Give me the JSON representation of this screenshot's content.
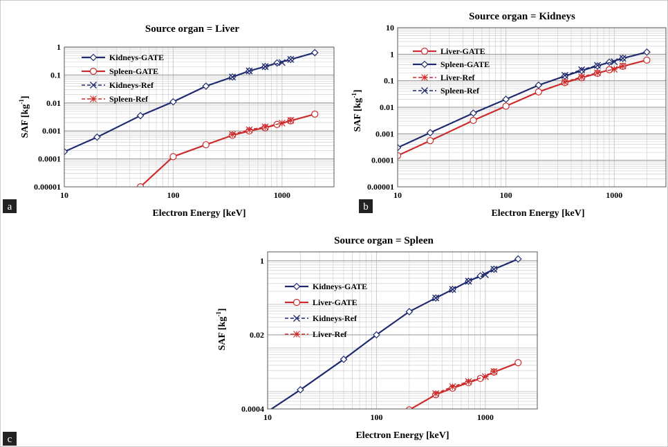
{
  "colors": {
    "navy": "#1f2a6e",
    "red": "#cc2b2b",
    "grid": "#c9c9c9",
    "panel_label_bg": "#222222"
  },
  "chart_data": [
    {
      "panel": "a",
      "type": "line",
      "title": "Source organ = Liver",
      "xlabel": "Electron Energy [keV]",
      "ylabel": "SAF [kg-1]",
      "xscale": "log",
      "yscale": "log",
      "xlim": [
        10,
        3000
      ],
      "ylim": [
        1e-05,
        1
      ],
      "xticks": [
        {
          "v": 10,
          "label": "10"
        },
        {
          "v": 100,
          "label": "100"
        },
        {
          "v": 1000,
          "label": "1000"
        }
      ],
      "yticks": [
        {
          "v": 1,
          "label": "1"
        },
        {
          "v": 0.1,
          "label": "0.1"
        },
        {
          "v": 0.01,
          "label": "0.01"
        },
        {
          "v": 0.001,
          "label": "0.001"
        },
        {
          "v": 0.0001,
          "label": "0.0001"
        },
        {
          "v": 1e-05,
          "label": "0.00001"
        }
      ],
      "legend_position": "top-left",
      "series": [
        {
          "name": "Kidneys-GATE",
          "color": "navy",
          "marker": "diamond",
          "dashed": false,
          "x": [
            10,
            20,
            50,
            100,
            200,
            350,
            500,
            700,
            900,
            1200,
            2000
          ],
          "y": [
            0.00018,
            0.0006,
            0.0035,
            0.011,
            0.04,
            0.085,
            0.14,
            0.2,
            0.27,
            0.36,
            0.63
          ]
        },
        {
          "name": "Spleen-GATE",
          "color": "red",
          "marker": "circle",
          "dashed": false,
          "x": [
            50,
            100,
            200,
            350,
            500,
            700,
            900,
            1200,
            2000
          ],
          "y": [
            1e-05,
            0.00012,
            0.00032,
            0.0007,
            0.001,
            0.0013,
            0.0017,
            0.0023,
            0.004
          ]
        },
        {
          "name": "Kidneys-Ref",
          "color": "navy",
          "marker": "x",
          "dashed": true,
          "x": [
            350,
            500,
            700,
            1000,
            1200
          ],
          "y": [
            0.085,
            0.14,
            0.2,
            0.28,
            0.36
          ]
        },
        {
          "name": "Spleen-Ref",
          "color": "red",
          "marker": "star",
          "dashed": true,
          "x": [
            350,
            500,
            700,
            1000,
            1200
          ],
          "y": [
            0.00075,
            0.0011,
            0.0014,
            0.0019,
            0.0024
          ]
        }
      ]
    },
    {
      "panel": "b",
      "type": "line",
      "title": "Source organ = Kidneys",
      "xlabel": "Electron Energy [keV]",
      "ylabel": "SAF [kg-1]",
      "xscale": "log",
      "yscale": "log",
      "xlim": [
        10,
        3000
      ],
      "ylim": [
        1e-05,
        10
      ],
      "xticks": [
        {
          "v": 10,
          "label": "10"
        },
        {
          "v": 100,
          "label": "100"
        },
        {
          "v": 1000,
          "label": "1000"
        }
      ],
      "yticks": [
        {
          "v": 10,
          "label": "10"
        },
        {
          "v": 1,
          "label": "1"
        },
        {
          "v": 0.1,
          "label": "0.1"
        },
        {
          "v": 0.01,
          "label": "0.01"
        },
        {
          "v": 0.001,
          "label": "0.001"
        },
        {
          "v": 0.0001,
          "label": "0.0001"
        },
        {
          "v": 1e-05,
          "label": "0.00001"
        }
      ],
      "legend_position": "top-left",
      "series": [
        {
          "name": "Liver-GATE",
          "color": "red",
          "marker": "circle",
          "dashed": false,
          "x": [
            10,
            20,
            50,
            100,
            200,
            350,
            500,
            700,
            900,
            1200,
            2000
          ],
          "y": [
            0.00015,
            0.00055,
            0.0032,
            0.011,
            0.038,
            0.085,
            0.13,
            0.19,
            0.26,
            0.35,
            0.6
          ]
        },
        {
          "name": "Spleen-GATE",
          "color": "navy",
          "marker": "diamond",
          "dashed": false,
          "x": [
            10,
            20,
            50,
            100,
            200,
            350,
            500,
            700,
            900,
            1200,
            2000
          ],
          "y": [
            0.0003,
            0.0011,
            0.006,
            0.02,
            0.068,
            0.15,
            0.24,
            0.36,
            0.5,
            0.7,
            1.2
          ]
        },
        {
          "name": "Liver-Ref",
          "color": "red",
          "marker": "star",
          "dashed": true,
          "x": [
            350,
            500,
            700,
            1000,
            1200
          ],
          "y": [
            0.09,
            0.14,
            0.2,
            0.27,
            0.36
          ]
        },
        {
          "name": "Spleen-Ref",
          "color": "navy",
          "marker": "x",
          "dashed": true,
          "x": [
            350,
            500,
            700,
            1000,
            1200
          ],
          "y": [
            0.16,
            0.26,
            0.38,
            0.52,
            0.7
          ]
        }
      ]
    },
    {
      "panel": "c",
      "type": "line",
      "title": "Source organ = Spleen",
      "xlabel": "Electron Energy [keV]",
      "ylabel": "SAF [kg-1]",
      "xscale": "log",
      "yscale": "log",
      "xlim": [
        10,
        3000
      ],
      "ylim": [
        0.0004,
        1.6
      ],
      "xticks": [
        {
          "v": 10,
          "label": "10"
        },
        {
          "v": 100,
          "label": "100"
        },
        {
          "v": 1000,
          "label": "1000"
        }
      ],
      "yticks": [
        {
          "v": 1,
          "label": "1"
        },
        {
          "v": 0.02,
          "label": "0.02"
        },
        {
          "v": 0.0004,
          "label": "0.0004"
        }
      ],
      "legend_position": "center-left",
      "series": [
        {
          "name": "Kidneys-GATE",
          "color": "navy",
          "marker": "diamond",
          "dashed": false,
          "x": [
            10,
            20,
            50,
            100,
            200,
            350,
            500,
            700,
            900,
            1200,
            2000
          ],
          "y": [
            0.00035,
            0.0011,
            0.0055,
            0.02,
            0.068,
            0.14,
            0.22,
            0.34,
            0.45,
            0.64,
            1.1
          ]
        },
        {
          "name": "Liver-GATE",
          "color": "red",
          "marker": "circle",
          "dashed": false,
          "x": [
            200,
            350,
            500,
            700,
            900,
            1200,
            2000
          ],
          "y": [
            0.00038,
            0.00085,
            0.0012,
            0.0016,
            0.002,
            0.0028,
            0.0046
          ]
        },
        {
          "name": "Kidneys-Ref",
          "color": "navy",
          "marker": "x",
          "dashed": true,
          "x": [
            350,
            500,
            700,
            1000,
            1200
          ],
          "y": [
            0.14,
            0.22,
            0.34,
            0.48,
            0.64
          ]
        },
        {
          "name": "Liver-Ref",
          "color": "red",
          "marker": "star",
          "dashed": true,
          "x": [
            350,
            500,
            700,
            1000,
            1200
          ],
          "y": [
            0.0009,
            0.0013,
            0.0017,
            0.0022,
            0.0029
          ]
        }
      ]
    }
  ]
}
